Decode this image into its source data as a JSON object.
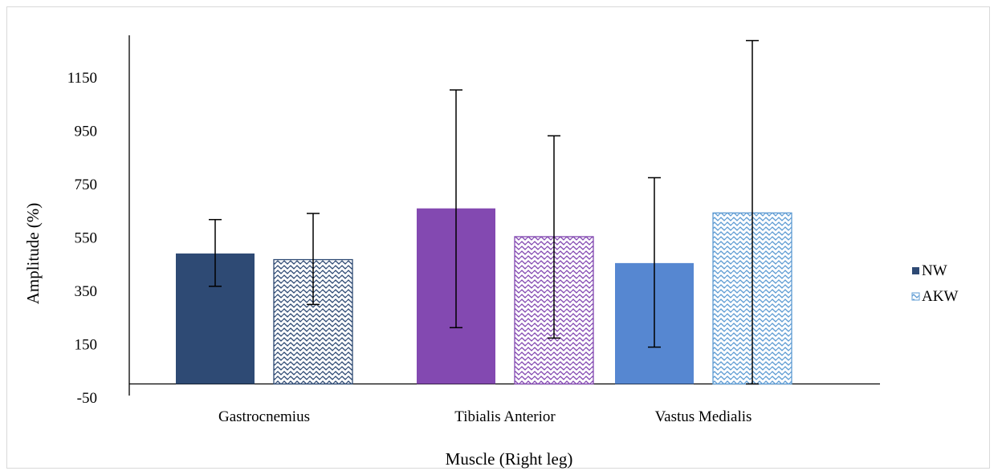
{
  "chart_data": {
    "type": "bar",
    "title": "",
    "xlabel": "Muscle (Right leg)",
    "ylabel": "Amplitude (%)",
    "categories": [
      "Gastrocnemius",
      "Tibialis Anterior",
      "Vastus Medialis"
    ],
    "yticks": [
      -50,
      150,
      350,
      550,
      750,
      950,
      1150
    ],
    "ytick_labels": [
      "-50",
      "150",
      "350",
      "550",
      "750",
      "950",
      "1150"
    ],
    "ylim": [
      -50,
      1300
    ],
    "grid": false,
    "legend_position": "right",
    "series": [
      {
        "name": "NW",
        "pattern": "solid",
        "values": [
          489,
          658,
          453
        ],
        "error_low": [
          366,
          211,
          138
        ],
        "error_high": [
          616,
          1102,
          773
        ],
        "colors": [
          "#2e4a74",
          "#8349b1",
          "#5687d1"
        ]
      },
      {
        "name": "AKW",
        "pattern": "wave",
        "values": [
          466,
          552,
          641
        ],
        "error_low": [
          298,
          172,
          0
        ],
        "error_high": [
          639,
          930,
          1287
        ],
        "colors": [
          "#2e4a74",
          "#8349b1",
          "#5d9bd3"
        ]
      }
    ],
    "legend": [
      {
        "label": "NW",
        "swatch_color": "#2e4a74",
        "pattern": "solid"
      },
      {
        "label": "AKW",
        "swatch_color": "#5d9bd3",
        "pattern": "wave"
      }
    ]
  }
}
